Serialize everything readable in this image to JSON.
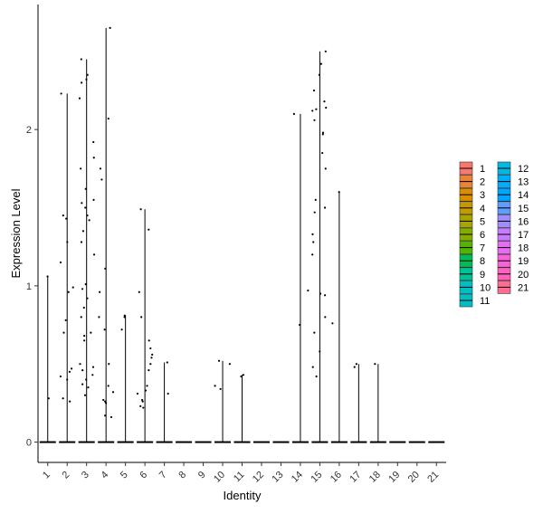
{
  "chart_data": {
    "type": "violin",
    "xlabel": "Identity",
    "ylabel": "Expression Level",
    "ylim": [
      -0.13,
      2.8
    ],
    "yticks": [
      0,
      1,
      2
    ],
    "categories": [
      "1",
      "2",
      "3",
      "4",
      "5",
      "6",
      "7",
      "8",
      "9",
      "10",
      "11",
      "12",
      "13",
      "14",
      "15",
      "16",
      "17",
      "18",
      "19",
      "20",
      "21"
    ],
    "colors": [
      "#F8766D",
      "#EB8335",
      "#DA8F00",
      "#C49A00",
      "#A9A400",
      "#86AC00",
      "#53B400",
      "#00BC56",
      "#00C094",
      "#00BFC4",
      "#00BFC4",
      "#00B9E3",
      "#00ADFA",
      "#00A5FF",
      "#619CFF",
      "#9F8CFF",
      "#C77CFF",
      "#E76BF3",
      "#FA62DB",
      "#FF62BC",
      "#FF6C91"
    ],
    "max_values": [
      1.06,
      2.23,
      2.45,
      2.65,
      0.81,
      1.49,
      0.51,
      0,
      0,
      0.52,
      0.43,
      0,
      0,
      2.1,
      2.5,
      1.6,
      0.5,
      0.5,
      0,
      0,
      0
    ],
    "points": [
      {
        "cat": "1",
        "y": [
          1.06,
          0.28
        ]
      },
      {
        "cat": "2",
        "y": [
          2.23,
          1.45,
          1.43,
          1.28,
          1.15,
          0.99,
          0.96,
          0.78,
          0.7,
          0.47,
          0.45,
          0.42,
          0.4,
          0.28,
          0.26
        ]
      },
      {
        "cat": "3",
        "y": [
          2.45,
          2.35,
          2.32,
          2.3,
          2.2,
          1.92,
          1.82,
          1.75,
          1.62,
          1.55,
          1.53,
          1.5,
          1.45,
          1.42,
          1.35,
          1.28,
          1.2,
          1.01,
          0.98,
          0.92,
          0.86,
          0.8,
          0.7,
          0.68,
          0.65,
          0.5,
          0.48,
          0.46,
          0.43,
          0.4,
          0.37,
          0.35,
          0.3
        ]
      },
      {
        "cat": "4",
        "y": [
          2.65,
          2.07,
          1.75,
          1.68,
          1.11,
          0.96,
          0.8,
          0.72,
          0.5,
          0.36,
          0.32,
          0.27,
          0.26,
          0.25,
          0.17,
          0.16
        ]
      },
      {
        "cat": "5",
        "y": [
          0.81,
          0.8,
          0.72
        ]
      },
      {
        "cat": "6",
        "y": [
          1.49,
          1.36,
          0.96,
          0.8,
          0.65,
          0.6,
          0.56,
          0.54,
          0.5,
          0.46,
          0.36,
          0.33,
          0.31,
          0.27,
          0.26,
          0.23,
          0.22
        ]
      },
      {
        "cat": "7",
        "y": [
          0.51,
          0.31
        ]
      },
      {
        "cat": "10",
        "y": [
          0.52,
          0.5,
          0.36,
          0.34
        ]
      },
      {
        "cat": "11",
        "y": [
          0.43,
          0.42
        ]
      },
      {
        "cat": "14",
        "y": [
          2.1,
          0.97,
          0.75
        ]
      },
      {
        "cat": "15",
        "y": [
          2.5,
          2.42,
          2.35,
          2.25,
          2.18,
          2.14,
          2.13,
          2.12,
          2.06,
          1.98,
          1.97,
          1.85,
          1.75,
          1.55,
          1.5,
          1.47,
          1.33,
          1.28,
          1.2,
          0.95,
          0.94,
          0.8,
          0.7,
          0.58,
          0.48,
          0.42
        ]
      },
      {
        "cat": "16",
        "y": [
          1.6,
          0.76
        ]
      },
      {
        "cat": "17",
        "y": [
          0.5,
          0.48
        ]
      },
      {
        "cat": "18",
        "y": [
          0.5
        ]
      }
    ],
    "legend": {
      "placement": "right",
      "columns": 2,
      "entries": [
        "1",
        "2",
        "3",
        "4",
        "5",
        "6",
        "7",
        "8",
        "9",
        "10",
        "11",
        "12",
        "13",
        "14",
        "15",
        "16",
        "17",
        "18",
        "19",
        "20",
        "21"
      ]
    },
    "grid": false
  }
}
